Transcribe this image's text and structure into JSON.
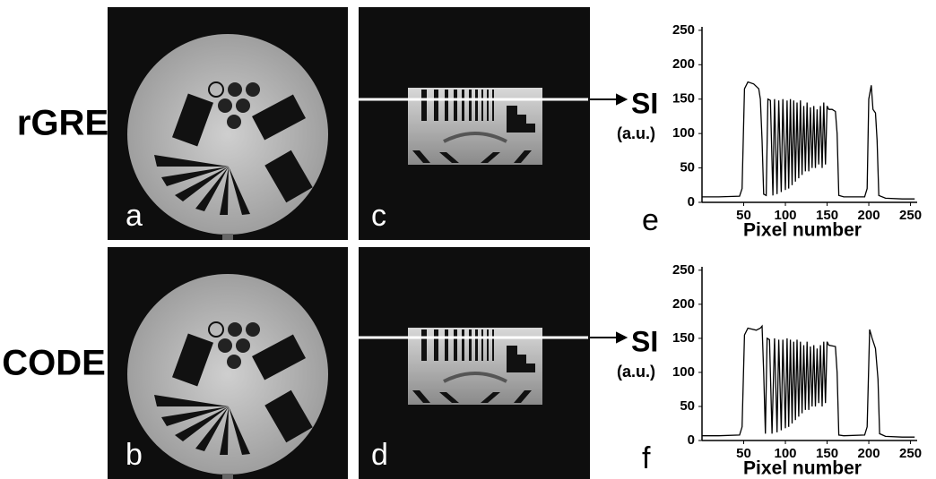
{
  "figure": {
    "row_labels": [
      "rGRE",
      "CODE"
    ],
    "panel_labels": [
      "a",
      "c",
      "b",
      "d"
    ],
    "si_labels": [
      "SI",
      "SI"
    ],
    "unit_labels": [
      "(a.u.)",
      "(a.u.)"
    ]
  },
  "chart_data": [
    {
      "type": "line",
      "panel_label": "e",
      "x_label": "Pixel number",
      "xlim": [
        0,
        258
      ],
      "ylim": [
        0,
        255
      ],
      "xticks": [
        50,
        100,
        150,
        200,
        250
      ],
      "yticks": [
        0,
        50,
        100,
        150,
        200,
        250
      ],
      "series": [
        {
          "color": "#000000",
          "x": [
            0,
            20,
            45,
            48,
            51,
            55,
            62,
            68,
            70,
            72,
            74,
            77,
            79,
            82,
            85,
            87,
            90,
            92,
            95,
            97,
            100,
            102,
            104,
            106,
            108,
            110,
            112,
            114,
            116,
            118,
            120,
            122,
            124,
            126,
            128,
            130,
            132,
            134,
            136,
            138,
            140,
            142,
            144,
            146,
            148,
            150,
            152,
            156,
            160,
            162,
            164,
            170,
            195,
            198,
            200,
            203,
            205,
            208,
            210,
            212,
            220,
            240,
            255
          ],
          "values": [
            8,
            8,
            9,
            20,
            165,
            175,
            172,
            165,
            150,
            90,
            12,
            10,
            150,
            148,
            10,
            150,
            12,
            148,
            15,
            150,
            18,
            148,
            20,
            150,
            25,
            148,
            30,
            145,
            35,
            148,
            40,
            140,
            45,
            145,
            45,
            138,
            50,
            140,
            50,
            135,
            55,
            140,
            50,
            145,
            55,
            140,
            135,
            135,
            132,
            100,
            10,
            8,
            8,
            20,
            150,
            170,
            135,
            130,
            90,
            10,
            6,
            5,
            5
          ]
        }
      ]
    },
    {
      "type": "line",
      "panel_label": "f",
      "x_label": "Pixel number",
      "xlim": [
        0,
        258
      ],
      "ylim": [
        0,
        255
      ],
      "xticks": [
        50,
        100,
        150,
        200,
        250
      ],
      "yticks": [
        0,
        50,
        100,
        150,
        200,
        250
      ],
      "series": [
        {
          "color": "#000000",
          "x": [
            0,
            20,
            45,
            48,
            51,
            55,
            65,
            70,
            72,
            74,
            76,
            78,
            81,
            84,
            87,
            90,
            92,
            95,
            97,
            100,
            102,
            104,
            106,
            108,
            110,
            112,
            114,
            116,
            118,
            120,
            122,
            124,
            126,
            128,
            130,
            132,
            134,
            136,
            138,
            140,
            142,
            144,
            146,
            148,
            150,
            152,
            160,
            162,
            164,
            170,
            195,
            198,
            201,
            204,
            208,
            211,
            213,
            220,
            240,
            255
          ],
          "values": [
            7,
            7,
            8,
            20,
            155,
            165,
            162,
            165,
            168,
            100,
            10,
            150,
            148,
            10,
            150,
            12,
            148,
            15,
            148,
            18,
            150,
            20,
            148,
            25,
            145,
            30,
            148,
            35,
            145,
            40,
            140,
            45,
            145,
            45,
            138,
            50,
            140,
            50,
            135,
            55,
            140,
            50,
            145,
            55,
            145,
            140,
            138,
            100,
            8,
            7,
            8,
            20,
            163,
            150,
            135,
            90,
            10,
            6,
            5,
            5
          ]
        }
      ]
    }
  ]
}
